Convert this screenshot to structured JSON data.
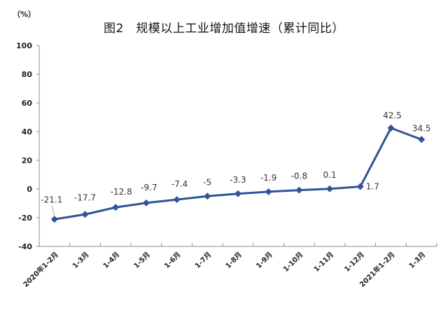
{
  "chart": {
    "title": "图2　规模以上工业增加值增速（累计同比）",
    "unit": "（%）"
  },
  "chart_data": {
    "type": "line",
    "title": "图2　规模以上工业增加值增速（累计同比）",
    "xlabel": "",
    "ylabel": "（%）",
    "ylim": [
      -40,
      100
    ],
    "yticks": [
      -40,
      -20,
      0,
      20,
      40,
      60,
      80,
      100
    ],
    "grid": false,
    "legend": null,
    "categories": [
      "2020年1-2月",
      "1-3月",
      "1-4月",
      "1-5月",
      "1-6月",
      "1-7月",
      "1-8月",
      "1-9月",
      "1-10月",
      "1-11月",
      "1-12月",
      "2021年1-2月",
      "1-3月"
    ],
    "series": [
      {
        "name": "规模以上工业增加值增速（累计同比）",
        "color": "#2f5597",
        "marker": "diamond",
        "values": [
          -21.1,
          -17.7,
          -12.8,
          -9.7,
          -7.4,
          -5,
          -3.3,
          -1.9,
          -0.8,
          0.1,
          1.7,
          42.5,
          34.5
        ],
        "labels": [
          "-21.1",
          "-17.7",
          "-12.8",
          "-9.7",
          "-7.4",
          "-5",
          "-3.3",
          "-1.9",
          "-0.8",
          "0.1",
          "1.7",
          "42.5",
          "34.5"
        ]
      }
    ]
  }
}
